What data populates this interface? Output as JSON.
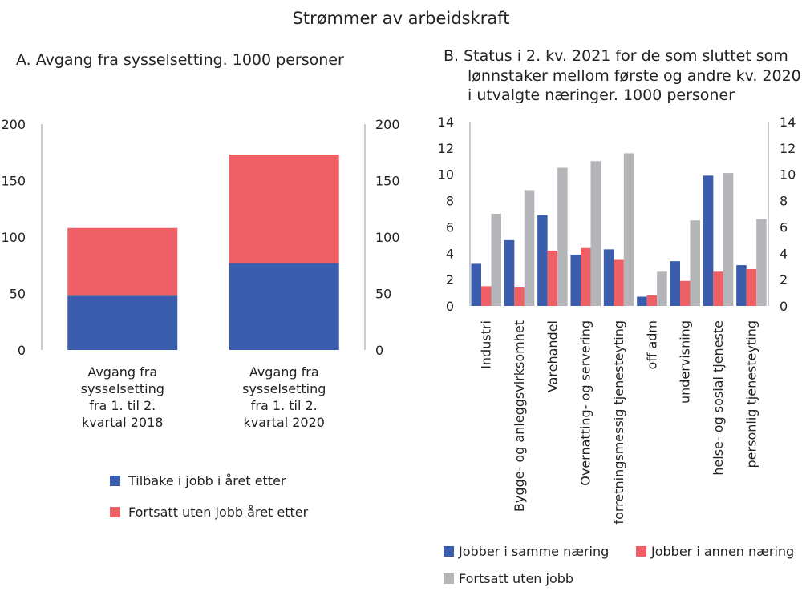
{
  "figure_title": "Strømmer av arbeidskraft",
  "panel_a": {
    "title": "A.  Avgang fra sysselsetting. 1000 personer",
    "colors": {
      "Tilbake i jobb i året etter": "#3a5dae",
      "Fortsatt uten jobb året etter": "#ef6066"
    }
  },
  "panel_b": {
    "title_lines": [
      "B.  Status i 2. kv. 2021 for de som sluttet som",
      "lønnstaker mellom første og andre kv. 2020",
      "i utvalgte næringer. 1000 personer"
    ],
    "colors": {
      "Jobber i samme næring": "#3a5dae",
      "Jobber i annen næring": "#ef6066",
      "Fortsatt uten jobb": "#b4b5b8"
    }
  },
  "chart_data": [
    {
      "type": "bar",
      "stacked": true,
      "title": "A.  Avgang fra sysselsetting. 1000 personer",
      "categories": [
        [
          "Avgang fra",
          "sysselsetting",
          "fra 1. til 2.",
          "kvartal 2018"
        ],
        [
          "Avgang fra",
          "sysselsetting",
          "fra 1. til 2.",
          "kvartal 2020"
        ]
      ],
      "series": [
        {
          "name": "Tilbake i jobb i året etter",
          "values": [
            48,
            77
          ]
        },
        {
          "name": "Fortsatt uten jobb året etter",
          "values": [
            60,
            96
          ]
        }
      ],
      "ylim": [
        0,
        200
      ],
      "yticks": [
        "0",
        "50",
        "100",
        "150",
        "200"
      ],
      "legend": "bottom",
      "grid": false
    },
    {
      "type": "bar",
      "stacked": false,
      "title": "B.  Status i 2. kv. 2021 for de som sluttet som lønnstaker mellom første og andre kv. 2020 i utvalgte næringer. 1000 personer",
      "categories": [
        "Industri",
        "Bygge- og anleggsvirksomhet",
        "Varehandel",
        "Overnatting- og servering",
        "forretningsmessig tjenesteyting",
        "off adm",
        "undervisning",
        "helse- og sosial tjeneste",
        "personlig tjenesteyting"
      ],
      "series": [
        {
          "name": "Jobber i samme næring",
          "values": [
            3.2,
            5.0,
            6.9,
            3.9,
            4.3,
            0.7,
            3.4,
            9.9,
            3.1
          ]
        },
        {
          "name": "Jobber i annen næring",
          "values": [
            1.5,
            1.4,
            4.2,
            4.4,
            3.5,
            0.8,
            1.9,
            2.6,
            2.8
          ]
        },
        {
          "name": "Fortsatt uten jobb",
          "values": [
            7.0,
            8.8,
            10.5,
            11.0,
            11.6,
            2.6,
            6.5,
            10.1,
            6.6
          ]
        }
      ],
      "ylim": [
        0,
        14
      ],
      "yticks": [
        "0",
        "2",
        "4",
        "6",
        "8",
        "10",
        "12",
        "14"
      ],
      "legend": "bottom",
      "grid": false
    }
  ]
}
